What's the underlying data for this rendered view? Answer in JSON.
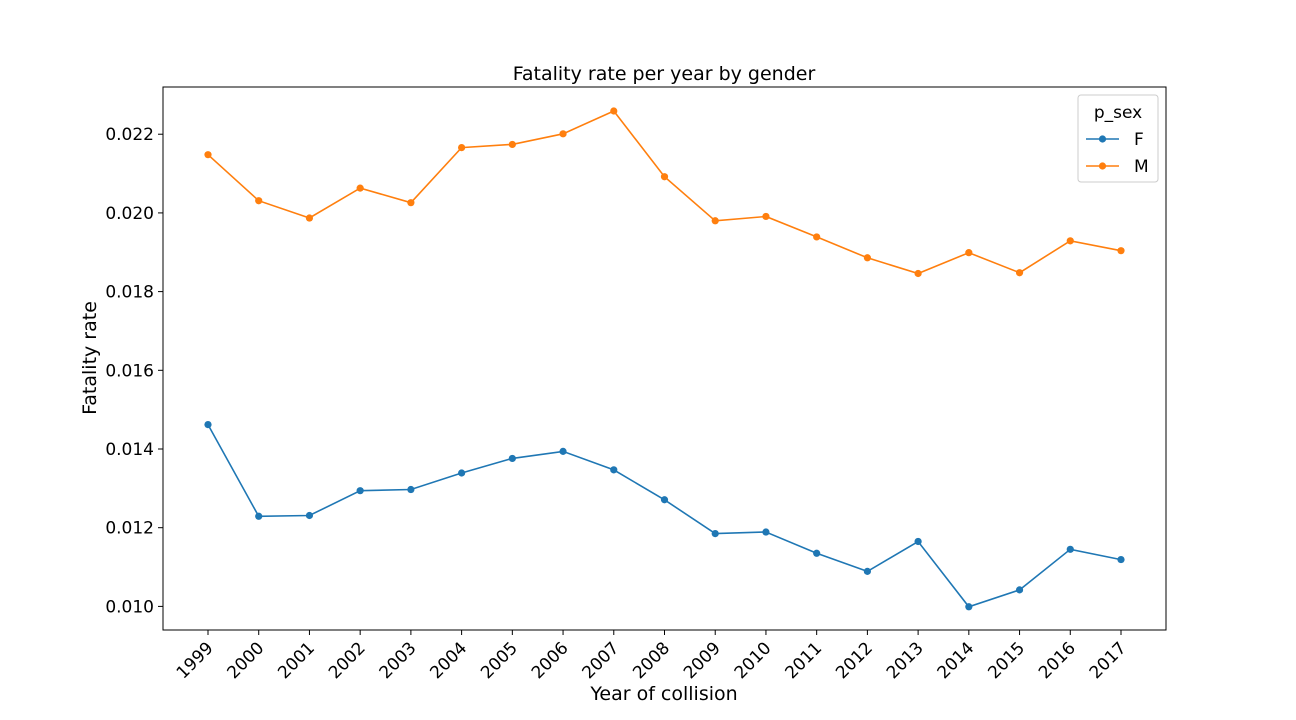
{
  "chart_data": {
    "type": "line",
    "title": "Fatality rate per year by gender",
    "xlabel": "Year of collision",
    "ylabel": "Fatality rate",
    "categories": [
      "1999",
      "2000",
      "2001",
      "2002",
      "2003",
      "2004",
      "2005",
      "2006",
      "2007",
      "2008",
      "2009",
      "2010",
      "2011",
      "2012",
      "2013",
      "2014",
      "2015",
      "2016",
      "2017"
    ],
    "ylim": [
      0.0094,
      0.0232
    ],
    "yticks": [
      "0.010",
      "0.012",
      "0.014",
      "0.016",
      "0.018",
      "0.020",
      "0.022"
    ],
    "grid": false,
    "legend": {
      "title": "p_sex",
      "position": "top-right"
    },
    "series": [
      {
        "name": "F",
        "color": "#1f77b4",
        "values": [
          0.01462,
          0.01229,
          0.01231,
          0.01294,
          0.01297,
          0.01339,
          0.01376,
          0.01394,
          0.01347,
          0.01271,
          0.01185,
          0.01189,
          0.01135,
          0.01089,
          0.01165,
          0.00999,
          0.01042,
          0.01145,
          0.01119
        ]
      },
      {
        "name": "M",
        "color": "#ff7f0e",
        "values": [
          0.02148,
          0.02031,
          0.01987,
          0.02063,
          0.02026,
          0.02166,
          0.02174,
          0.02201,
          0.02259,
          0.02092,
          0.0198,
          0.01991,
          0.01939,
          0.01886,
          0.01846,
          0.01899,
          0.01848,
          0.01929,
          0.01904
        ]
      }
    ]
  }
}
